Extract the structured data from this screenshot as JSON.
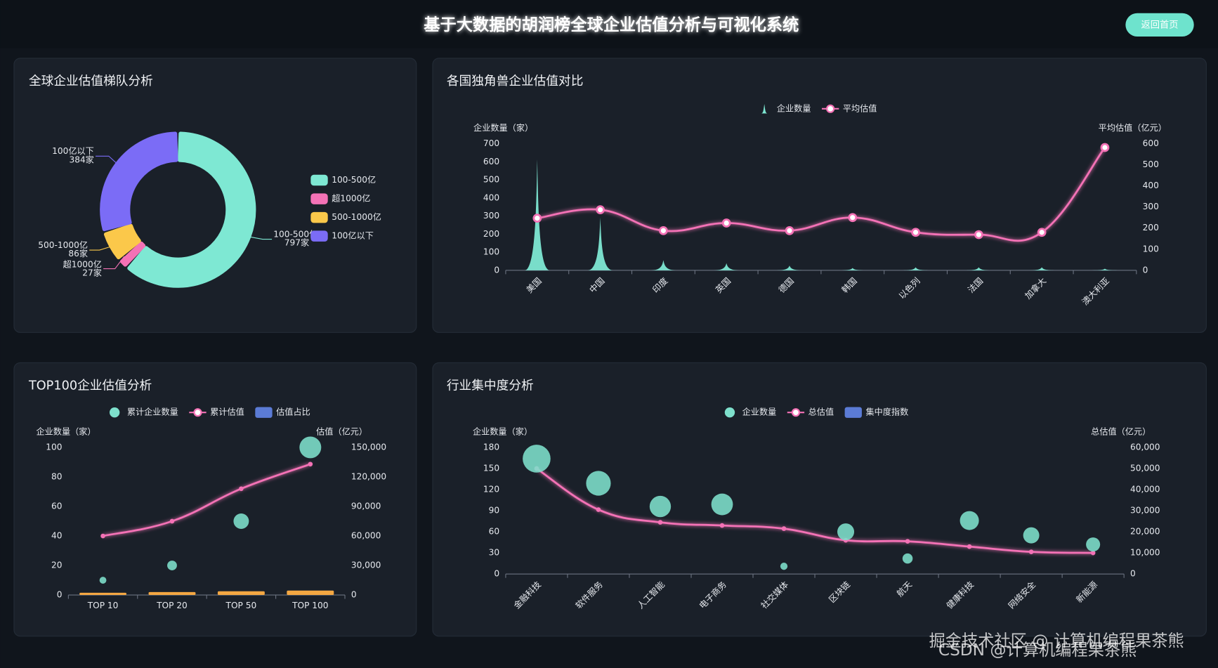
{
  "header": {
    "title": "基于大数据的胡润榜全球企业估值分析与可视化系统",
    "button": "返回首页"
  },
  "watermark": [
    "掘金技术社区 @ 计算机编程果茶熊",
    "CSDN @计算机编程果茶熊"
  ],
  "chart_data": [
    {
      "type": "pie",
      "title": "全球企业估值梯队分析",
      "donut": true,
      "legend": "right",
      "categories": [
        "100-500亿",
        "超1000亿",
        "500-1000亿",
        "100亿以下"
      ],
      "values": [
        797,
        27,
        86,
        384
      ],
      "value_labels": [
        "797家",
        "27家",
        "86家",
        "384家"
      ],
      "colors": [
        "#7ee8d3",
        "#f472b6",
        "#fbc84a",
        "#7b6cf6"
      ]
    },
    {
      "type": "combo",
      "title": "各国独角兽企业估值对比",
      "legend": "top",
      "grid": false,
      "categories": [
        "美国",
        "中国",
        "印度",
        "英国",
        "德国",
        "韩国",
        "以色列",
        "法国",
        "加拿大",
        "澳大利亚"
      ],
      "ylabel": "企业数量（家）",
      "y2label": "平均估值（亿元）",
      "ylim": [
        0,
        700
      ],
      "yticks": [
        0,
        100,
        200,
        300,
        400,
        500,
        600,
        700
      ],
      "y2lim": [
        0,
        600
      ],
      "y2ticks": [
        0,
        100,
        200,
        300,
        400,
        500,
        600
      ],
      "series": [
        {
          "name": "企业数量",
          "type": "spike",
          "color": "#7ee8d3",
          "values": [
            614,
            292,
            56,
            39,
            26,
            13,
            17,
            17,
            17,
            9
          ]
        },
        {
          "name": "平均估值",
          "type": "line",
          "axis": "y2",
          "color": "#f472b6",
          "values": [
            247,
            287,
            188,
            224,
            188,
            250,
            180,
            169,
            180,
            582
          ]
        }
      ]
    },
    {
      "type": "combo",
      "title": "TOP100企业估值分析",
      "legend": "top",
      "grid": false,
      "categories": [
        "TOP 10",
        "TOP 20",
        "TOP 50",
        "TOP 100"
      ],
      "ylabel": "企业数量（家）",
      "y2label": "估值（亿元）",
      "ylim": [
        0,
        100
      ],
      "yticks": [
        0,
        20,
        40,
        60,
        80,
        100
      ],
      "y2lim": [
        0,
        150000
      ],
      "y2ticks": [
        0,
        {
          "value": 30000,
          "label": "30,000"
        },
        {
          "value": 60000,
          "label": "60,000"
        },
        {
          "value": 90000,
          "label": "90,000"
        },
        {
          "value": 120000,
          "label": "120,000"
        },
        {
          "value": 150000,
          "label": "150,000"
        }
      ],
      "series": [
        {
          "name": "累计企业数量",
          "type": "bubble",
          "color": "#7ee0cc",
          "values": [
            10,
            20,
            50,
            100
          ]
        },
        {
          "name": "累计估值",
          "type": "line",
          "axis": "y2",
          "color": "#f472b6",
          "values": [
            60000,
            75000,
            108000,
            133000
          ]
        },
        {
          "name": "估值占比",
          "type": "bar",
          "color": "#5b7bd5",
          "bar_color": "#f4a742",
          "values": [
            1.5,
            2,
            2.5,
            3
          ]
        }
      ]
    },
    {
      "type": "combo",
      "title": "行业集中度分析",
      "legend": "top",
      "grid": false,
      "categories": [
        "金融科技",
        "软件服务",
        "人工智能",
        "电子商务",
        "社交媒体",
        "区块链",
        "航天",
        "健康科技",
        "网络安全",
        "新能源"
      ],
      "ylabel": "企业数量（家）",
      "y2label": "总估值（亿元）",
      "ylim": [
        0,
        180
      ],
      "yticks": [
        0,
        30,
        60,
        90,
        120,
        150,
        180
      ],
      "y2lim": [
        0,
        60000
      ],
      "y2ticks": [
        0,
        {
          "value": 10000,
          "label": "10,000"
        },
        {
          "value": 20000,
          "label": "20,000"
        },
        {
          "value": 30000,
          "label": "30,000"
        },
        {
          "value": 40000,
          "label": "40,000"
        },
        {
          "value": 50000,
          "label": "50,000"
        },
        {
          "value": 60000,
          "label": "60,000"
        }
      ],
      "series": [
        {
          "name": "企业数量",
          "type": "bubble",
          "color": "#7ee0cc",
          "values": [
            164,
            129,
            96,
            99,
            11,
            60,
            22,
            76,
            55,
            42
          ]
        },
        {
          "name": "总估值",
          "type": "line",
          "axis": "y2",
          "color": "#f472b6",
          "values": [
            50000,
            30500,
            24500,
            23000,
            21500,
            16000,
            15500,
            13000,
            10500,
            10000
          ]
        },
        {
          "name": "集中度指数",
          "type": "bar",
          "color": "#5b7bd5",
          "values": [
            null,
            null,
            null,
            null,
            null,
            null,
            null,
            null,
            null,
            null
          ]
        }
      ]
    }
  ]
}
